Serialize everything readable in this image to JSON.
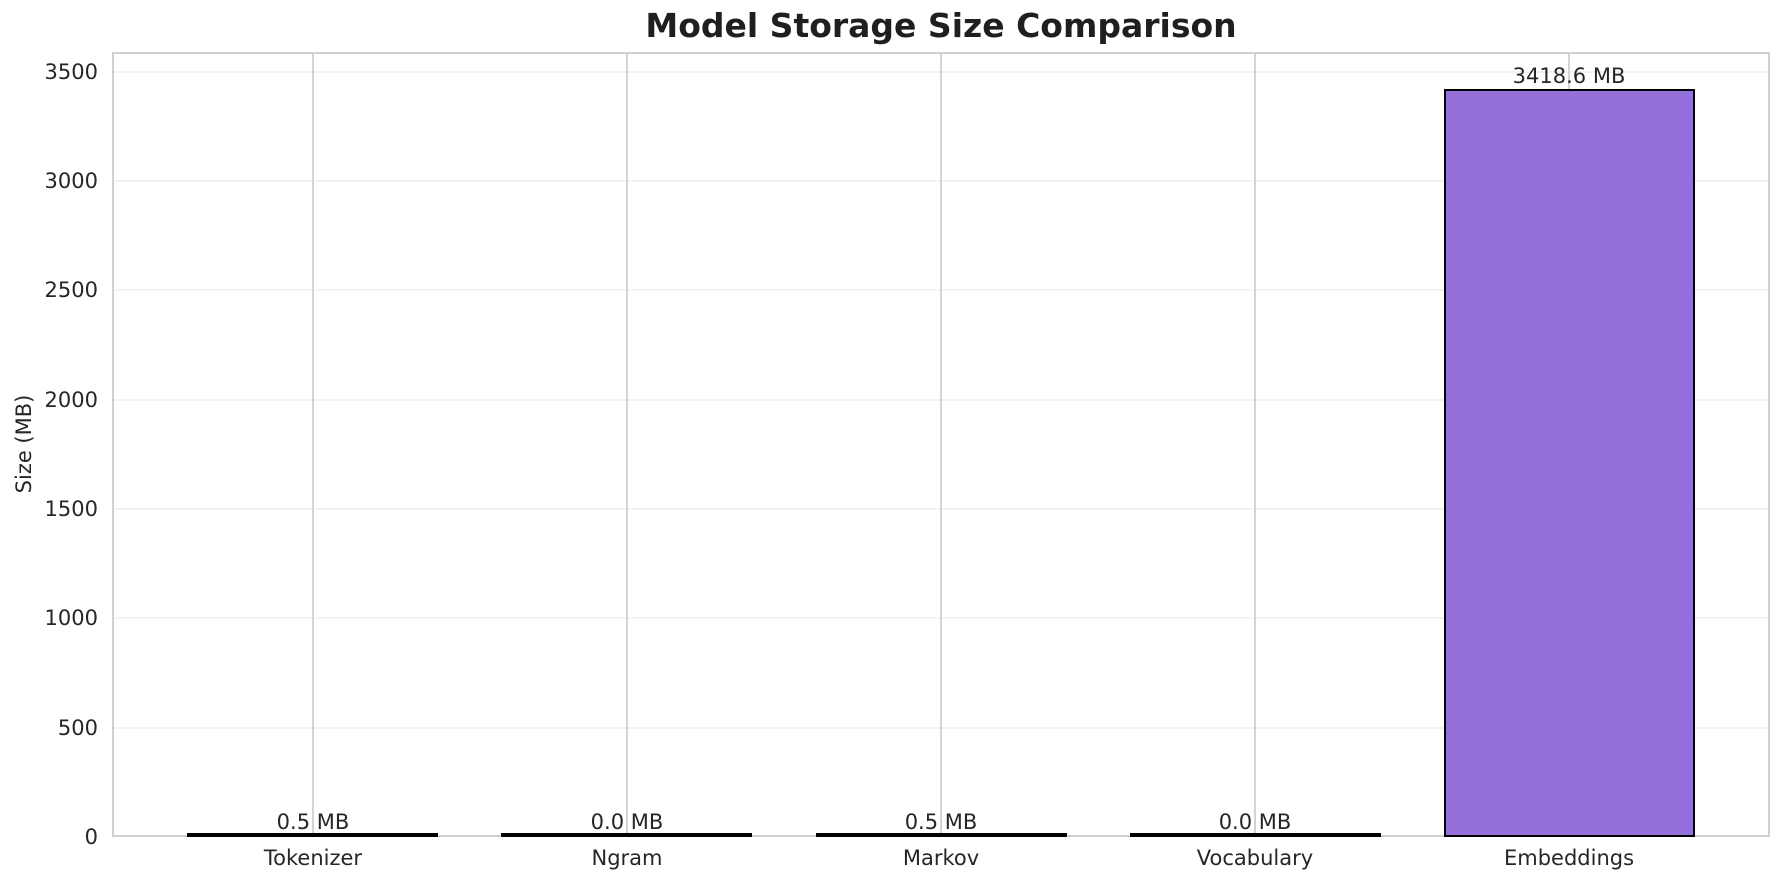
{
  "chart_data": {
    "type": "bar",
    "title": "Model Storage Size Comparison",
    "xlabel": "",
    "ylabel": "Size (MB)",
    "categories": [
      "Tokenizer",
      "Ngram",
      "Markov",
      "Vocabulary",
      "Embeddings"
    ],
    "values": [
      0.5,
      0.0,
      0.5,
      0.0,
      3418.6
    ],
    "bar_labels": [
      "0.5 MB",
      "0.0 MB",
      "0.5 MB",
      "0.0 MB",
      "3418.6 MB"
    ],
    "yticks": [
      0,
      500,
      1000,
      1500,
      2000,
      2500,
      3000,
      3500
    ],
    "ylim": [
      0,
      3589.5
    ],
    "grid": true,
    "legend": null,
    "bar_color": "#9370DB",
    "bar_edge_color": "#000000",
    "background_color": "#ffffff"
  }
}
